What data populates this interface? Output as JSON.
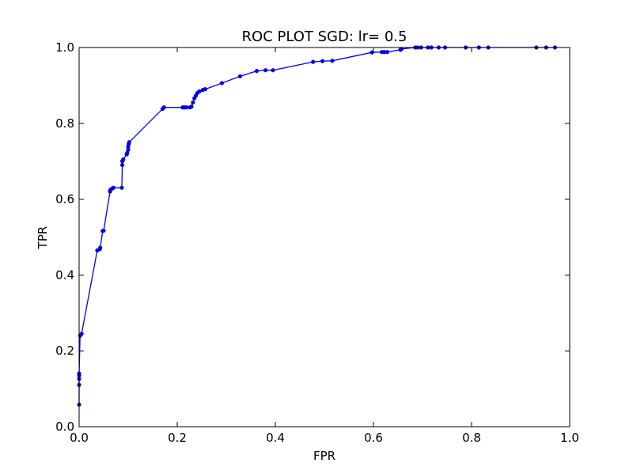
{
  "chart_data": {
    "type": "line",
    "title": "ROC PLOT SGD: lr= 0.5",
    "xlabel": "FPR",
    "ylabel": "TPR",
    "xlim": [
      0.0,
      1.0
    ],
    "ylim": [
      0.0,
      1.0
    ],
    "xticks": [
      "0.0",
      "0.2",
      "0.4",
      "0.6",
      "0.8",
      "1.0"
    ],
    "yticks": [
      "0.0",
      "0.2",
      "0.4",
      "0.6",
      "0.8",
      "1.0"
    ],
    "grid": false,
    "series": [
      {
        "color": "#0000ff",
        "marker": "circle",
        "x": [
          0.0,
          0.0,
          0.0,
          0.0,
          0.0,
          0.002,
          0.005,
          0.037,
          0.042,
          0.043,
          0.048,
          0.05,
          0.063,
          0.064,
          0.067,
          0.07,
          0.087,
          0.088,
          0.088,
          0.09,
          0.097,
          0.098,
          0.1,
          0.1,
          0.101,
          0.102,
          0.17,
          0.173,
          0.211,
          0.215,
          0.219,
          0.226,
          0.229,
          0.232,
          0.235,
          0.238,
          0.241,
          0.245,
          0.252,
          0.257,
          0.291,
          0.328,
          0.362,
          0.38,
          0.395,
          0.477,
          0.496,
          0.516,
          0.597,
          0.617,
          0.622,
          0.628,
          0.655,
          0.657,
          0.685,
          0.69,
          0.697,
          0.711,
          0.718,
          0.733,
          0.746,
          0.788,
          0.815,
          0.834,
          0.932,
          0.952,
          0.97
        ],
        "y": [
          0.058,
          0.11,
          0.126,
          0.135,
          0.14,
          0.24,
          0.245,
          0.465,
          0.468,
          0.472,
          0.516,
          0.517,
          0.62,
          0.625,
          0.628,
          0.63,
          0.63,
          0.69,
          0.7,
          0.705,
          0.718,
          0.722,
          0.73,
          0.738,
          0.745,
          0.75,
          0.838,
          0.842,
          0.842,
          0.842,
          0.842,
          0.842,
          0.844,
          0.855,
          0.866,
          0.873,
          0.88,
          0.884,
          0.888,
          0.89,
          0.906,
          0.924,
          0.938,
          0.94,
          0.94,
          0.962,
          0.964,
          0.965,
          0.987,
          0.988,
          0.988,
          0.988,
          0.994,
          0.996,
          1.0,
          1.0,
          1.0,
          1.0,
          1.0,
          1.0,
          1.0,
          1.0,
          1.0,
          1.0,
          1.0,
          1.0,
          1.0
        ]
      }
    ]
  }
}
